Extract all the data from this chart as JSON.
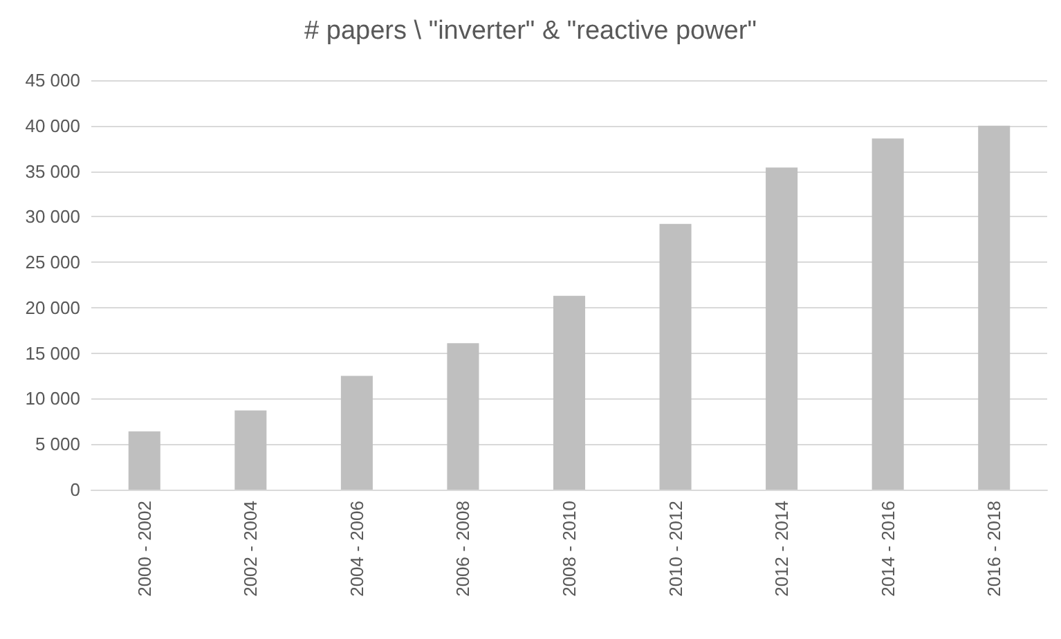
{
  "chart_data": {
    "type": "bar",
    "title": "# papers \\ \"inverter\" & \"reactive power\"",
    "categories": [
      "2000 - 2002",
      "2002 - 2004",
      "2004 - 2006",
      "2006 - 2008",
      "2008 - 2010",
      "2010 - 2012",
      "2012 - 2014",
      "2014 - 2016",
      "2016 - 2018"
    ],
    "values": [
      6400,
      8700,
      12500,
      16100,
      21300,
      29200,
      35400,
      38600,
      40000
    ],
    "color": "#bfbfbf",
    "ylim": [
      0,
      45000
    ],
    "yticks": [
      {
        "value": 0,
        "label": "0"
      },
      {
        "value": 5000,
        "label": "5 000"
      },
      {
        "value": 10000,
        "label": "10 000"
      },
      {
        "value": 15000,
        "label": "15 000"
      },
      {
        "value": 20000,
        "label": "20 000"
      },
      {
        "value": 25000,
        "label": "25 000"
      },
      {
        "value": 30000,
        "label": "30 000"
      },
      {
        "value": 35000,
        "label": "35 000"
      },
      {
        "value": 40000,
        "label": "40 000"
      },
      {
        "value": 45000,
        "label": "45 000"
      }
    ],
    "grid": "y"
  }
}
